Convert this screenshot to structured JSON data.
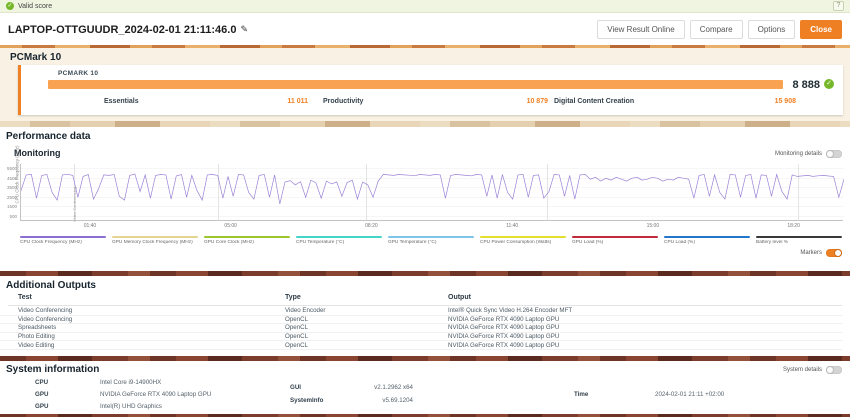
{
  "colors": {
    "accent": "#ee7f22",
    "score_bar": "#f9a352",
    "valid_green": "#76b82a",
    "chart_line": "#9b82d6"
  },
  "valid_banner": {
    "label": "Valid score",
    "check_icon": "✓",
    "help_label": "?"
  },
  "header": {
    "title": "LAPTOP-OTTGUUDR_2024-02-01 21:11:46.0",
    "edit_icon": "✎",
    "buttons": {
      "view_online": "View Result Online",
      "compare": "Compare",
      "options": "Options",
      "close": "Close"
    }
  },
  "benchmark": {
    "section_title": "PCMark 10",
    "card_label": "PCMARK 10",
    "overall_score": "8 888",
    "check_icon": "✓",
    "subscores": [
      {
        "label": "Essentials",
        "value": "11 011"
      },
      {
        "label": "Productivity",
        "value": "10 879"
      },
      {
        "label": "Digital Content Creation",
        "value": "15 908"
      }
    ]
  },
  "performance": {
    "section_title": "Performance data",
    "subsection_title": "Monitoring",
    "details_toggle_label": "Monitoring details",
    "details_toggle_on": false,
    "markers_toggle_label": "Markers",
    "markers_toggle_on": true
  },
  "chart_data": {
    "type": "line",
    "title": "Monitoring",
    "ylabel": "CPU Clock Frequency (MHz)",
    "ylim": [
      0,
      6000
    ],
    "yticks": [
      500,
      1500,
      2500,
      3500,
      4500,
      5500
    ],
    "xticks": [
      {
        "label": "01:40",
        "pos": 0.085
      },
      {
        "label": "05:00",
        "pos": 0.256
      },
      {
        "label": "08:20",
        "pos": 0.427
      },
      {
        "label": "11:40",
        "pos": 0.598
      },
      {
        "label": "15:00",
        "pos": 0.769
      },
      {
        "label": "18:20",
        "pos": 0.94
      }
    ],
    "grid": true,
    "series": [
      {
        "name": "CPU Clock Frequency (MHz)",
        "color": "#9b82d6",
        "values": [
          3200,
          4850,
          4900,
          2400,
          4800,
          4900,
          3000,
          2200,
          4850,
          4920,
          4800,
          2500,
          4700,
          4900,
          2300,
          3400,
          4850,
          4800,
          4900,
          2600,
          2200,
          4800,
          4950,
          3100,
          4850,
          2400,
          4800,
          4900,
          4850,
          2300,
          4750,
          4900,
          2500,
          4800,
          3200,
          2200,
          4850,
          4900,
          4800,
          2400,
          4700,
          2600,
          4900,
          4850,
          3000,
          2300,
          4800,
          4900,
          2500,
          4850,
          1800,
          4100,
          4250,
          3800,
          4150,
          2500,
          4300,
          4000,
          2400,
          4200,
          3900,
          4100,
          2600,
          4050,
          4300,
          2300,
          4100,
          3800,
          2500,
          4200,
          4900,
          4850,
          4800,
          4900,
          4850,
          4820,
          4760,
          4900,
          4850,
          4800,
          4900,
          4850,
          2400,
          4800,
          4900,
          4850,
          4800,
          4760,
          4900,
          4850,
          2600,
          4850,
          2400,
          4900,
          3000,
          2300,
          4850,
          4900,
          2500,
          4800,
          4850,
          2400,
          3100,
          4900,
          4850,
          2600,
          4800,
          2300,
          4850,
          4900,
          4400,
          4600,
          4200,
          4500,
          4300,
          4600,
          4400,
          4200,
          4500,
          4600,
          4300,
          4400,
          4600,
          4500,
          4200,
          4400,
          4300,
          4600,
          4500,
          4400,
          2400,
          4800,
          4900,
          2600,
          4850,
          3000,
          2300,
          4900,
          4850,
          2500,
          4800,
          4900,
          2400,
          4850,
          4800,
          2600,
          4900,
          3100,
          2300,
          4850,
          4700,
          4750,
          4800,
          4700,
          4760,
          4800,
          4740,
          4700,
          2500,
          4400
        ]
      }
    ],
    "markers": [
      {
        "pos": 0.065,
        "label": "Video Conferencing"
      },
      {
        "pos": 0.24,
        "label": ""
      },
      {
        "pos": 0.42,
        "label": ""
      },
      {
        "pos": 0.64,
        "label": ""
      },
      {
        "pos": 0.945,
        "label": ""
      }
    ],
    "legend_position": "bottom",
    "legend": [
      {
        "label": "CPU Clock Frequency (MHz)",
        "color": "#8d6fd1"
      },
      {
        "label": "GPU Memory Clock Frequency (MHz)",
        "color": "#e6d492"
      },
      {
        "label": "GPU Core Clock (MHz)",
        "color": "#9dc62d"
      },
      {
        "label": "CPU Temperature (°C)",
        "color": "#45d4c8"
      },
      {
        "label": "GPU Temperature (°C)",
        "color": "#7fc3e8"
      },
      {
        "label": "CPU Power Consumption (Watts)",
        "color": "#e3df2e"
      },
      {
        "label": "GPU Load (%)",
        "color": "#c22a3c"
      },
      {
        "label": "CPU Load (%)",
        "color": "#2277cc"
      },
      {
        "label": "Battery level %",
        "color": "#3a3a3a"
      }
    ]
  },
  "additional_outputs": {
    "section_title": "Additional Outputs",
    "columns": [
      "Test",
      "Type",
      "Output"
    ],
    "rows": [
      [
        "Video Conferencing",
        "Video Encoder",
        "Intel® Quick Sync Video H.264 Encoder MFT"
      ],
      [
        "Video Conferencing",
        "OpenCL",
        "NVIDIA GeForce RTX 4090 Laptop GPU"
      ],
      [
        "Spreadsheets",
        "OpenCL",
        "NVIDIA GeForce RTX 4090 Laptop GPU"
      ],
      [
        "Photo Editing",
        "OpenCL",
        "NVIDIA GeForce RTX 4090 Laptop GPU"
      ],
      [
        "Video Editing",
        "OpenCL",
        "NVIDIA GeForce RTX 4090 Laptop GPU"
      ]
    ]
  },
  "system_information": {
    "section_title": "System information",
    "details_toggle_label": "System details",
    "details_toggle_on": false,
    "cpu": {
      "label": "CPU",
      "value": "Intel Core i9-14900HX"
    },
    "gpu1": {
      "label": "GPU",
      "value": "NVIDIA GeForce RTX 4090 Laptop GPU"
    },
    "gpu2": {
      "label": "GPU",
      "value": "Intel(R) UHD Graphics"
    },
    "gui": {
      "label": "GUI",
      "value": "v2.1.2962 x64"
    },
    "systeminfo": {
      "label": "SystemInfo",
      "value": "v5.69.1204"
    },
    "time": {
      "label": "Time",
      "value": "2024-02-01 21:11 +02:00"
    }
  }
}
